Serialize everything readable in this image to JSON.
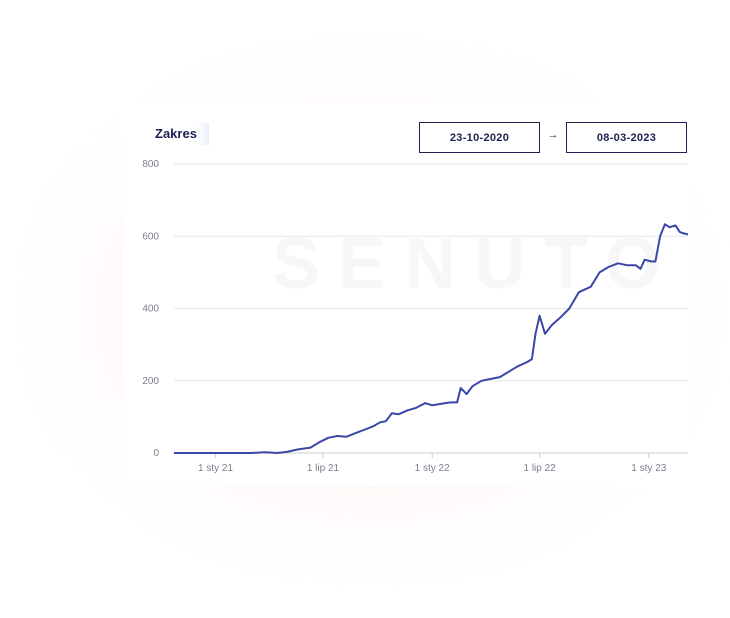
{
  "card": {
    "title": "Zakres",
    "date_from": "23-10-2020",
    "date_to": "08-03-2023",
    "arrow": "→",
    "watermark": "SENUTO"
  },
  "colors": {
    "line": "#3a46a8",
    "text_dark": "#1c2251",
    "grid": "#e4e6ec",
    "tick_text": "#7b7f8c"
  },
  "chart_data": {
    "type": "line",
    "title": "Zakres",
    "xlabel": "",
    "ylabel": "",
    "ylim": [
      0,
      800
    ],
    "yticks": [
      0,
      200,
      400,
      600,
      800
    ],
    "xlim": [
      "2020-10-23",
      "2023-03-08"
    ],
    "xticks": [
      {
        "date": "2021-01-01",
        "label": "1 sty 21"
      },
      {
        "date": "2021-07-01",
        "label": "1 lip 21"
      },
      {
        "date": "2022-01-01",
        "label": "1 sty 22"
      },
      {
        "date": "2022-07-01",
        "label": "1 lip 22"
      },
      {
        "date": "2023-01-01",
        "label": "1 sty 23"
      }
    ],
    "grid": true,
    "series": [
      {
        "points": [
          [
            "2020-10-23",
            0
          ],
          [
            "2021-01-01",
            0
          ],
          [
            "2021-03-01",
            0
          ],
          [
            "2021-03-25",
            2
          ],
          [
            "2021-04-15",
            0
          ],
          [
            "2021-05-01",
            3
          ],
          [
            "2021-05-20",
            10
          ],
          [
            "2021-06-10",
            15
          ],
          [
            "2021-06-25",
            30
          ],
          [
            "2021-07-10",
            42
          ],
          [
            "2021-07-25",
            47
          ],
          [
            "2021-08-10",
            45
          ],
          [
            "2021-08-25",
            55
          ],
          [
            "2021-09-10",
            65
          ],
          [
            "2021-09-25",
            75
          ],
          [
            "2021-10-05",
            85
          ],
          [
            "2021-10-15",
            88
          ],
          [
            "2021-10-25",
            110
          ],
          [
            "2021-11-05",
            107
          ],
          [
            "2021-11-20",
            118
          ],
          [
            "2021-12-05",
            125
          ],
          [
            "2021-12-20",
            138
          ],
          [
            "2022-01-01",
            132
          ],
          [
            "2022-01-15",
            136
          ],
          [
            "2022-02-01",
            140
          ],
          [
            "2022-02-12",
            140
          ],
          [
            "2022-02-18",
            180
          ],
          [
            "2022-02-28",
            163
          ],
          [
            "2022-03-10",
            185
          ],
          [
            "2022-03-25",
            200
          ],
          [
            "2022-04-10",
            205
          ],
          [
            "2022-04-25",
            210
          ],
          [
            "2022-05-10",
            225
          ],
          [
            "2022-05-25",
            240
          ],
          [
            "2022-06-10",
            252
          ],
          [
            "2022-06-18",
            260
          ],
          [
            "2022-06-24",
            330
          ],
          [
            "2022-07-01",
            380
          ],
          [
            "2022-07-10",
            330
          ],
          [
            "2022-07-22",
            355
          ],
          [
            "2022-08-05",
            375
          ],
          [
            "2022-08-20",
            400
          ],
          [
            "2022-09-05",
            445
          ],
          [
            "2022-09-25",
            460
          ],
          [
            "2022-10-10",
            500
          ],
          [
            "2022-10-25",
            515
          ],
          [
            "2022-11-10",
            525
          ],
          [
            "2022-11-25",
            520
          ],
          [
            "2022-12-10",
            520
          ],
          [
            "2022-12-18",
            510
          ],
          [
            "2022-12-25",
            535
          ],
          [
            "2023-01-05",
            530
          ],
          [
            "2023-01-12",
            530
          ],
          [
            "2023-01-20",
            600
          ],
          [
            "2023-01-28",
            633
          ],
          [
            "2023-02-05",
            625
          ],
          [
            "2023-02-15",
            630
          ],
          [
            "2023-02-22",
            612
          ],
          [
            "2023-03-01",
            608
          ],
          [
            "2023-03-08",
            605
          ]
        ]
      }
    ]
  }
}
